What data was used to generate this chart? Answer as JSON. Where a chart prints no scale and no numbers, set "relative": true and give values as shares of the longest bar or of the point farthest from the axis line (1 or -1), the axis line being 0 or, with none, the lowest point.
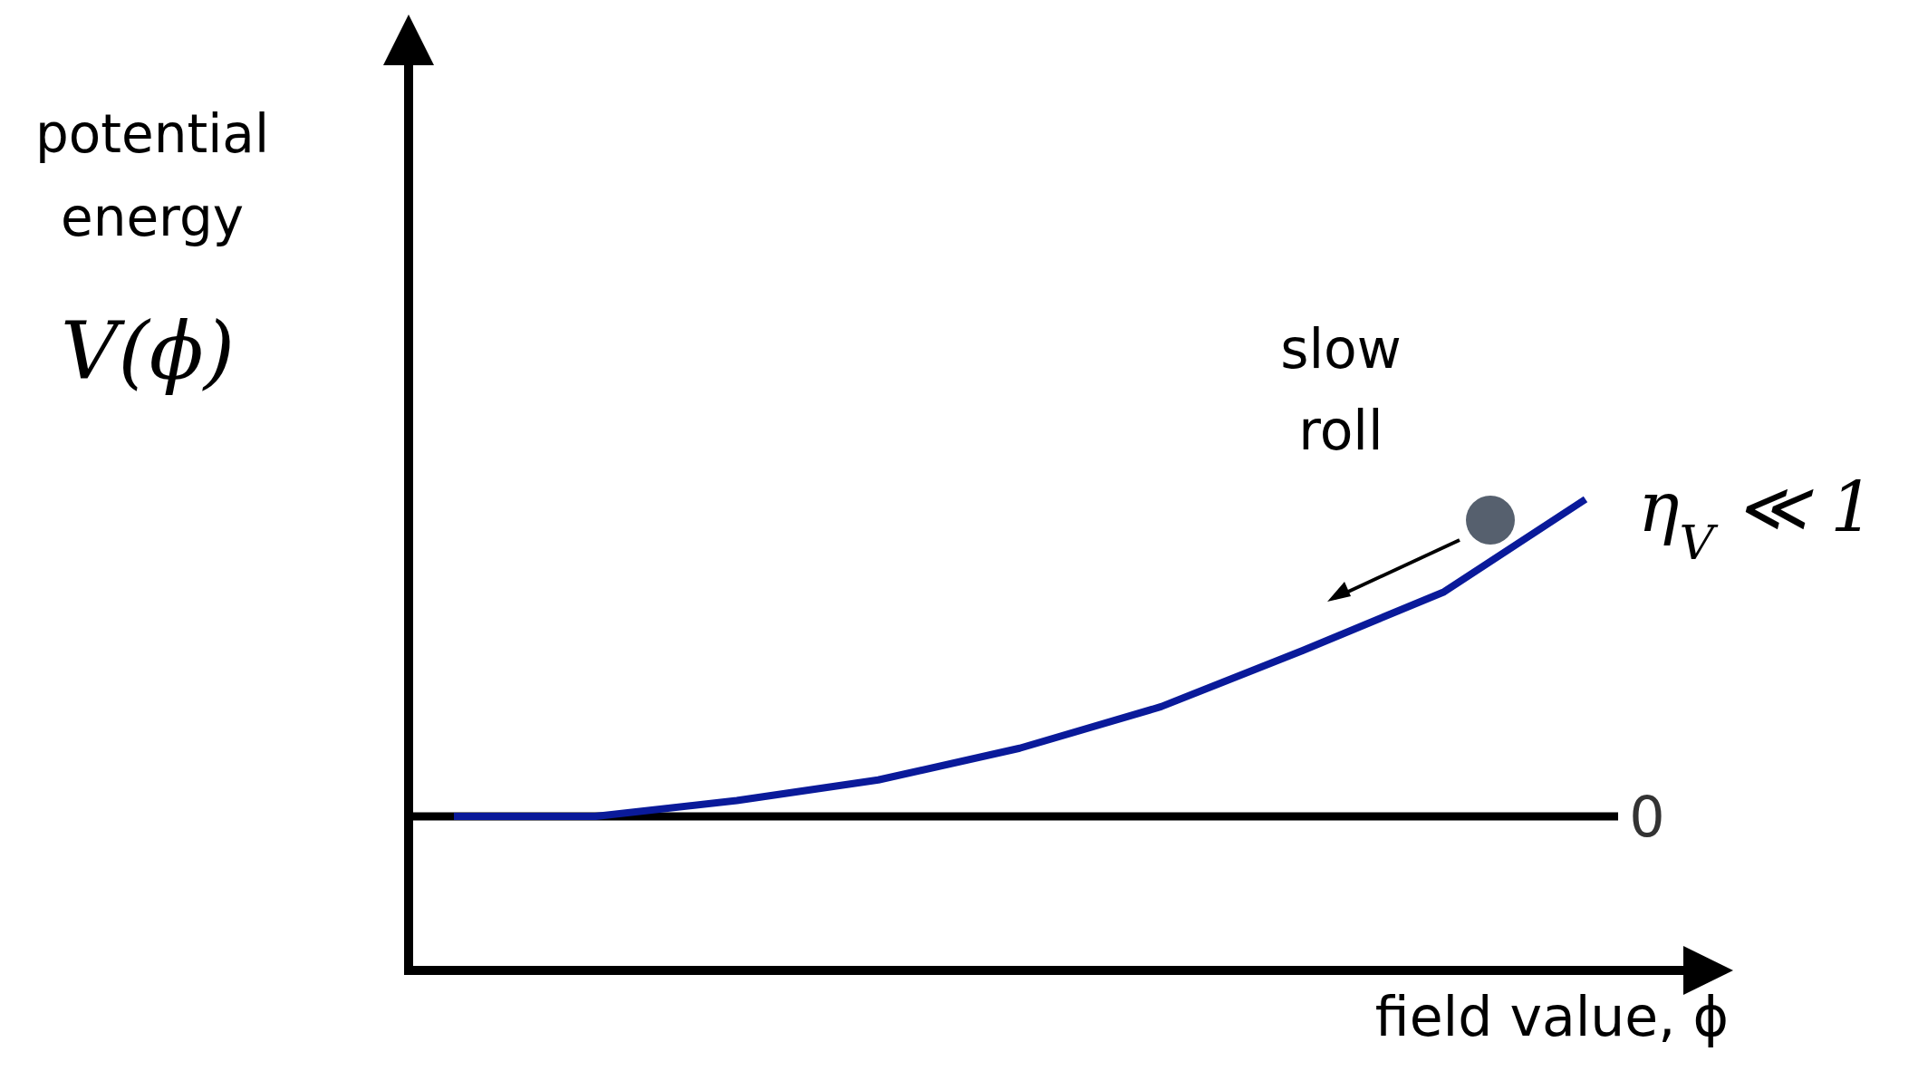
{
  "chart_data": {
    "type": "line",
    "relative": true,
    "categories": [
      null,
      null,
      null,
      null,
      null,
      null,
      null,
      null,
      null
    ],
    "series": [
      {
        "color": "#0a1a9a",
        "values": [
          0,
          0,
          0.05,
          0.115,
          0.215,
          0.346,
          0.523,
          0.708,
          1
        ]
      }
    ],
    "xlabel": "field value, ϕ",
    "ylabel": "potential energy\nV(ϕ)",
    "ref_lines": [
      {
        "axis": "y",
        "value": 0,
        "label": "0",
        "color": "#000000"
      }
    ],
    "annotations": [
      "slow\nroll",
      "η$_{V}$ ≪ 1"
    ],
    "line_style": "solid"
  }
}
